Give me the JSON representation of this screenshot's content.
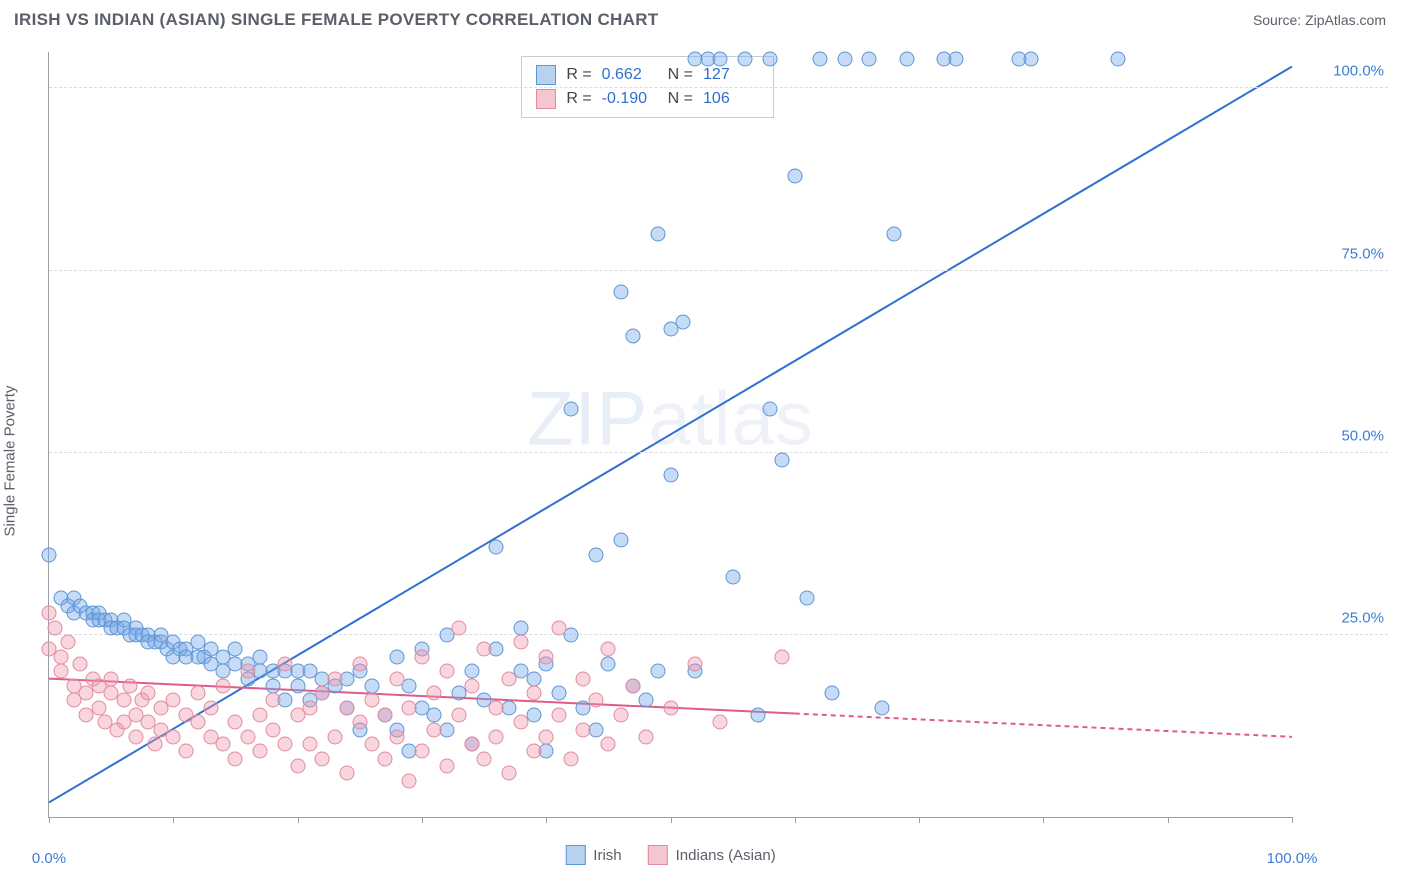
{
  "header": {
    "title": "IRISH VS INDIAN (ASIAN) SINGLE FEMALE POVERTY CORRELATION CHART",
    "source_prefix": "Source: ",
    "source": "ZipAtlas.com"
  },
  "watermark": {
    "bold": "ZIP",
    "light": "atlas"
  },
  "axes": {
    "ylabel": "Single Female Poverty",
    "xlim": [
      0,
      100
    ],
    "ylim": [
      0,
      105
    ],
    "xtick_positions": [
      0,
      10,
      20,
      30,
      40,
      50,
      60,
      70,
      80,
      90,
      100
    ],
    "xtick_labels": {
      "0": "0.0%",
      "100": "100.0%"
    },
    "ytick_positions": [
      25,
      50,
      75,
      100
    ],
    "ytick_labels": {
      "25": "25.0%",
      "50": "50.0%",
      "75": "75.0%",
      "100": "100.0%"
    },
    "grid_color": "#d9dce1",
    "axis_color": "#9aa0aa"
  },
  "series": [
    {
      "key": "irish",
      "label": "Irish",
      "color_fill": "rgba(120,170,230,0.42)",
      "color_stroke": "#5e95d6",
      "swatch_fill": "#b8d1ef",
      "swatch_border": "#5e95d6",
      "R": "0.662",
      "N": "127",
      "trend": {
        "x1": 0,
        "y1": 2,
        "x2": 100,
        "y2": 103,
        "color": "#2f6fd0",
        "width": 2,
        "solid_until_x": 100
      }
    },
    {
      "key": "indians",
      "label": "Indians (Asian)",
      "color_fill": "rgba(240,150,170,0.40)",
      "color_stroke": "#e28aa0",
      "swatch_fill": "#f5c6d2",
      "swatch_border": "#e28aa0",
      "R": "-0.190",
      "N": "106",
      "trend": {
        "x1": 0,
        "y1": 19,
        "x2": 100,
        "y2": 11,
        "color": "#e05a8a",
        "width": 2,
        "solid_until_x": 60
      }
    }
  ],
  "legend_stats": {
    "R_label": "R =",
    "N_label": "N ="
  },
  "points": {
    "irish": [
      [
        0,
        36
      ],
      [
        1,
        30
      ],
      [
        1.5,
        29
      ],
      [
        2,
        30
      ],
      [
        2,
        28
      ],
      [
        2.5,
        29
      ],
      [
        3,
        28
      ],
      [
        3.5,
        28
      ],
      [
        3.5,
        27
      ],
      [
        4,
        28
      ],
      [
        4,
        27
      ],
      [
        4.5,
        27
      ],
      [
        5,
        27
      ],
      [
        5,
        26
      ],
      [
        5.5,
        26
      ],
      [
        6,
        27
      ],
      [
        6,
        26
      ],
      [
        6.5,
        25
      ],
      [
        7,
        26
      ],
      [
        7,
        25
      ],
      [
        7.5,
        25
      ],
      [
        8,
        25
      ],
      [
        8,
        24
      ],
      [
        8.5,
        24
      ],
      [
        9,
        25
      ],
      [
        9,
        24
      ],
      [
        9.5,
        23
      ],
      [
        10,
        24
      ],
      [
        10,
        22
      ],
      [
        10.5,
        23
      ],
      [
        11,
        23
      ],
      [
        11,
        22
      ],
      [
        12,
        24
      ],
      [
        12,
        22
      ],
      [
        12.5,
        22
      ],
      [
        13,
        21
      ],
      [
        13,
        23
      ],
      [
        14,
        22
      ],
      [
        14,
        20
      ],
      [
        15,
        21
      ],
      [
        15,
        23
      ],
      [
        16,
        21
      ],
      [
        16,
        19
      ],
      [
        17,
        22
      ],
      [
        17,
        20
      ],
      [
        18,
        20
      ],
      [
        18,
        18
      ],
      [
        19,
        20
      ],
      [
        19,
        16
      ],
      [
        20,
        20
      ],
      [
        20,
        18
      ],
      [
        21,
        20
      ],
      [
        21,
        16
      ],
      [
        22,
        19
      ],
      [
        22,
        17
      ],
      [
        23,
        18
      ],
      [
        24,
        19
      ],
      [
        24,
        15
      ],
      [
        25,
        20
      ],
      [
        25,
        12
      ],
      [
        26,
        18
      ],
      [
        27,
        14
      ],
      [
        28,
        22
      ],
      [
        28,
        12
      ],
      [
        29,
        18
      ],
      [
        29,
        9
      ],
      [
        30,
        15
      ],
      [
        30,
        23
      ],
      [
        31,
        14
      ],
      [
        32,
        25
      ],
      [
        32,
        12
      ],
      [
        33,
        17
      ],
      [
        34,
        20
      ],
      [
        34,
        10
      ],
      [
        35,
        16
      ],
      [
        36,
        23
      ],
      [
        36,
        37
      ],
      [
        37,
        15
      ],
      [
        38,
        20
      ],
      [
        38,
        26
      ],
      [
        39,
        14
      ],
      [
        39,
        19
      ],
      [
        40,
        9
      ],
      [
        40,
        21
      ],
      [
        41,
        17
      ],
      [
        42,
        56
      ],
      [
        42,
        25
      ],
      [
        43,
        15
      ],
      [
        44,
        36
      ],
      [
        44,
        12
      ],
      [
        45,
        21
      ],
      [
        46,
        72
      ],
      [
        46,
        38
      ],
      [
        47,
        66
      ],
      [
        47,
        18
      ],
      [
        48,
        16
      ],
      [
        49,
        20
      ],
      [
        49,
        80
      ],
      [
        50,
        67
      ],
      [
        50,
        47
      ],
      [
        51,
        68
      ],
      [
        52,
        20
      ],
      [
        52,
        104
      ],
      [
        53,
        104
      ],
      [
        54,
        104
      ],
      [
        55,
        33
      ],
      [
        56,
        104
      ],
      [
        57,
        14
      ],
      [
        58,
        104
      ],
      [
        58,
        56
      ],
      [
        59,
        49
      ],
      [
        60,
        88
      ],
      [
        61,
        30
      ],
      [
        62,
        104
      ],
      [
        63,
        17
      ],
      [
        64,
        104
      ],
      [
        66,
        104
      ],
      [
        67,
        15
      ],
      [
        68,
        80
      ],
      [
        69,
        104
      ],
      [
        72,
        104
      ],
      [
        73,
        104
      ],
      [
        78,
        104
      ],
      [
        79,
        104
      ],
      [
        86,
        104
      ]
    ],
    "indians": [
      [
        0,
        28
      ],
      [
        0,
        23
      ],
      [
        0.5,
        26
      ],
      [
        1,
        22
      ],
      [
        1,
        20
      ],
      [
        1.5,
        24
      ],
      [
        2,
        18
      ],
      [
        2,
        16
      ],
      [
        2.5,
        21
      ],
      [
        3,
        17
      ],
      [
        3,
        14
      ],
      [
        3.5,
        19
      ],
      [
        4,
        18
      ],
      [
        4,
        15
      ],
      [
        4.5,
        13
      ],
      [
        5,
        17
      ],
      [
        5,
        19
      ],
      [
        5.5,
        12
      ],
      [
        6,
        16
      ],
      [
        6,
        13
      ],
      [
        6.5,
        18
      ],
      [
        7,
        14
      ],
      [
        7,
        11
      ],
      [
        7.5,
        16
      ],
      [
        8,
        13
      ],
      [
        8,
        17
      ],
      [
        8.5,
        10
      ],
      [
        9,
        15
      ],
      [
        9,
        12
      ],
      [
        10,
        16
      ],
      [
        10,
        11
      ],
      [
        11,
        14
      ],
      [
        11,
        9
      ],
      [
        12,
        13
      ],
      [
        12,
        17
      ],
      [
        13,
        11
      ],
      [
        13,
        15
      ],
      [
        14,
        10
      ],
      [
        14,
        18
      ],
      [
        15,
        13
      ],
      [
        15,
        8
      ],
      [
        16,
        11
      ],
      [
        16,
        20
      ],
      [
        17,
        14
      ],
      [
        17,
        9
      ],
      [
        18,
        16
      ],
      [
        18,
        12
      ],
      [
        19,
        10
      ],
      [
        19,
        21
      ],
      [
        20,
        14
      ],
      [
        20,
        7
      ],
      [
        21,
        15
      ],
      [
        21,
        10
      ],
      [
        22,
        17
      ],
      [
        22,
        8
      ],
      [
        23,
        11
      ],
      [
        23,
        19
      ],
      [
        24,
        15
      ],
      [
        24,
        6
      ],
      [
        25,
        13
      ],
      [
        25,
        21
      ],
      [
        26,
        10
      ],
      [
        26,
        16
      ],
      [
        27,
        14
      ],
      [
        27,
        8
      ],
      [
        28,
        19
      ],
      [
        28,
        11
      ],
      [
        29,
        5
      ],
      [
        29,
        15
      ],
      [
        30,
        22
      ],
      [
        30,
        9
      ],
      [
        31,
        17
      ],
      [
        31,
        12
      ],
      [
        32,
        7
      ],
      [
        32,
        20
      ],
      [
        33,
        14
      ],
      [
        33,
        26
      ],
      [
        34,
        10
      ],
      [
        34,
        18
      ],
      [
        35,
        8
      ],
      [
        35,
        23
      ],
      [
        36,
        15
      ],
      [
        36,
        11
      ],
      [
        37,
        19
      ],
      [
        37,
        6
      ],
      [
        38,
        13
      ],
      [
        38,
        24
      ],
      [
        39,
        9
      ],
      [
        39,
        17
      ],
      [
        40,
        22
      ],
      [
        40,
        11
      ],
      [
        41,
        26
      ],
      [
        41,
        14
      ],
      [
        42,
        8
      ],
      [
        43,
        19
      ],
      [
        43,
        12
      ],
      [
        44,
        16
      ],
      [
        45,
        10
      ],
      [
        45,
        23
      ],
      [
        46,
        14
      ],
      [
        47,
        18
      ],
      [
        48,
        11
      ],
      [
        50,
        15
      ],
      [
        52,
        21
      ],
      [
        54,
        13
      ],
      [
        59,
        22
      ]
    ]
  }
}
